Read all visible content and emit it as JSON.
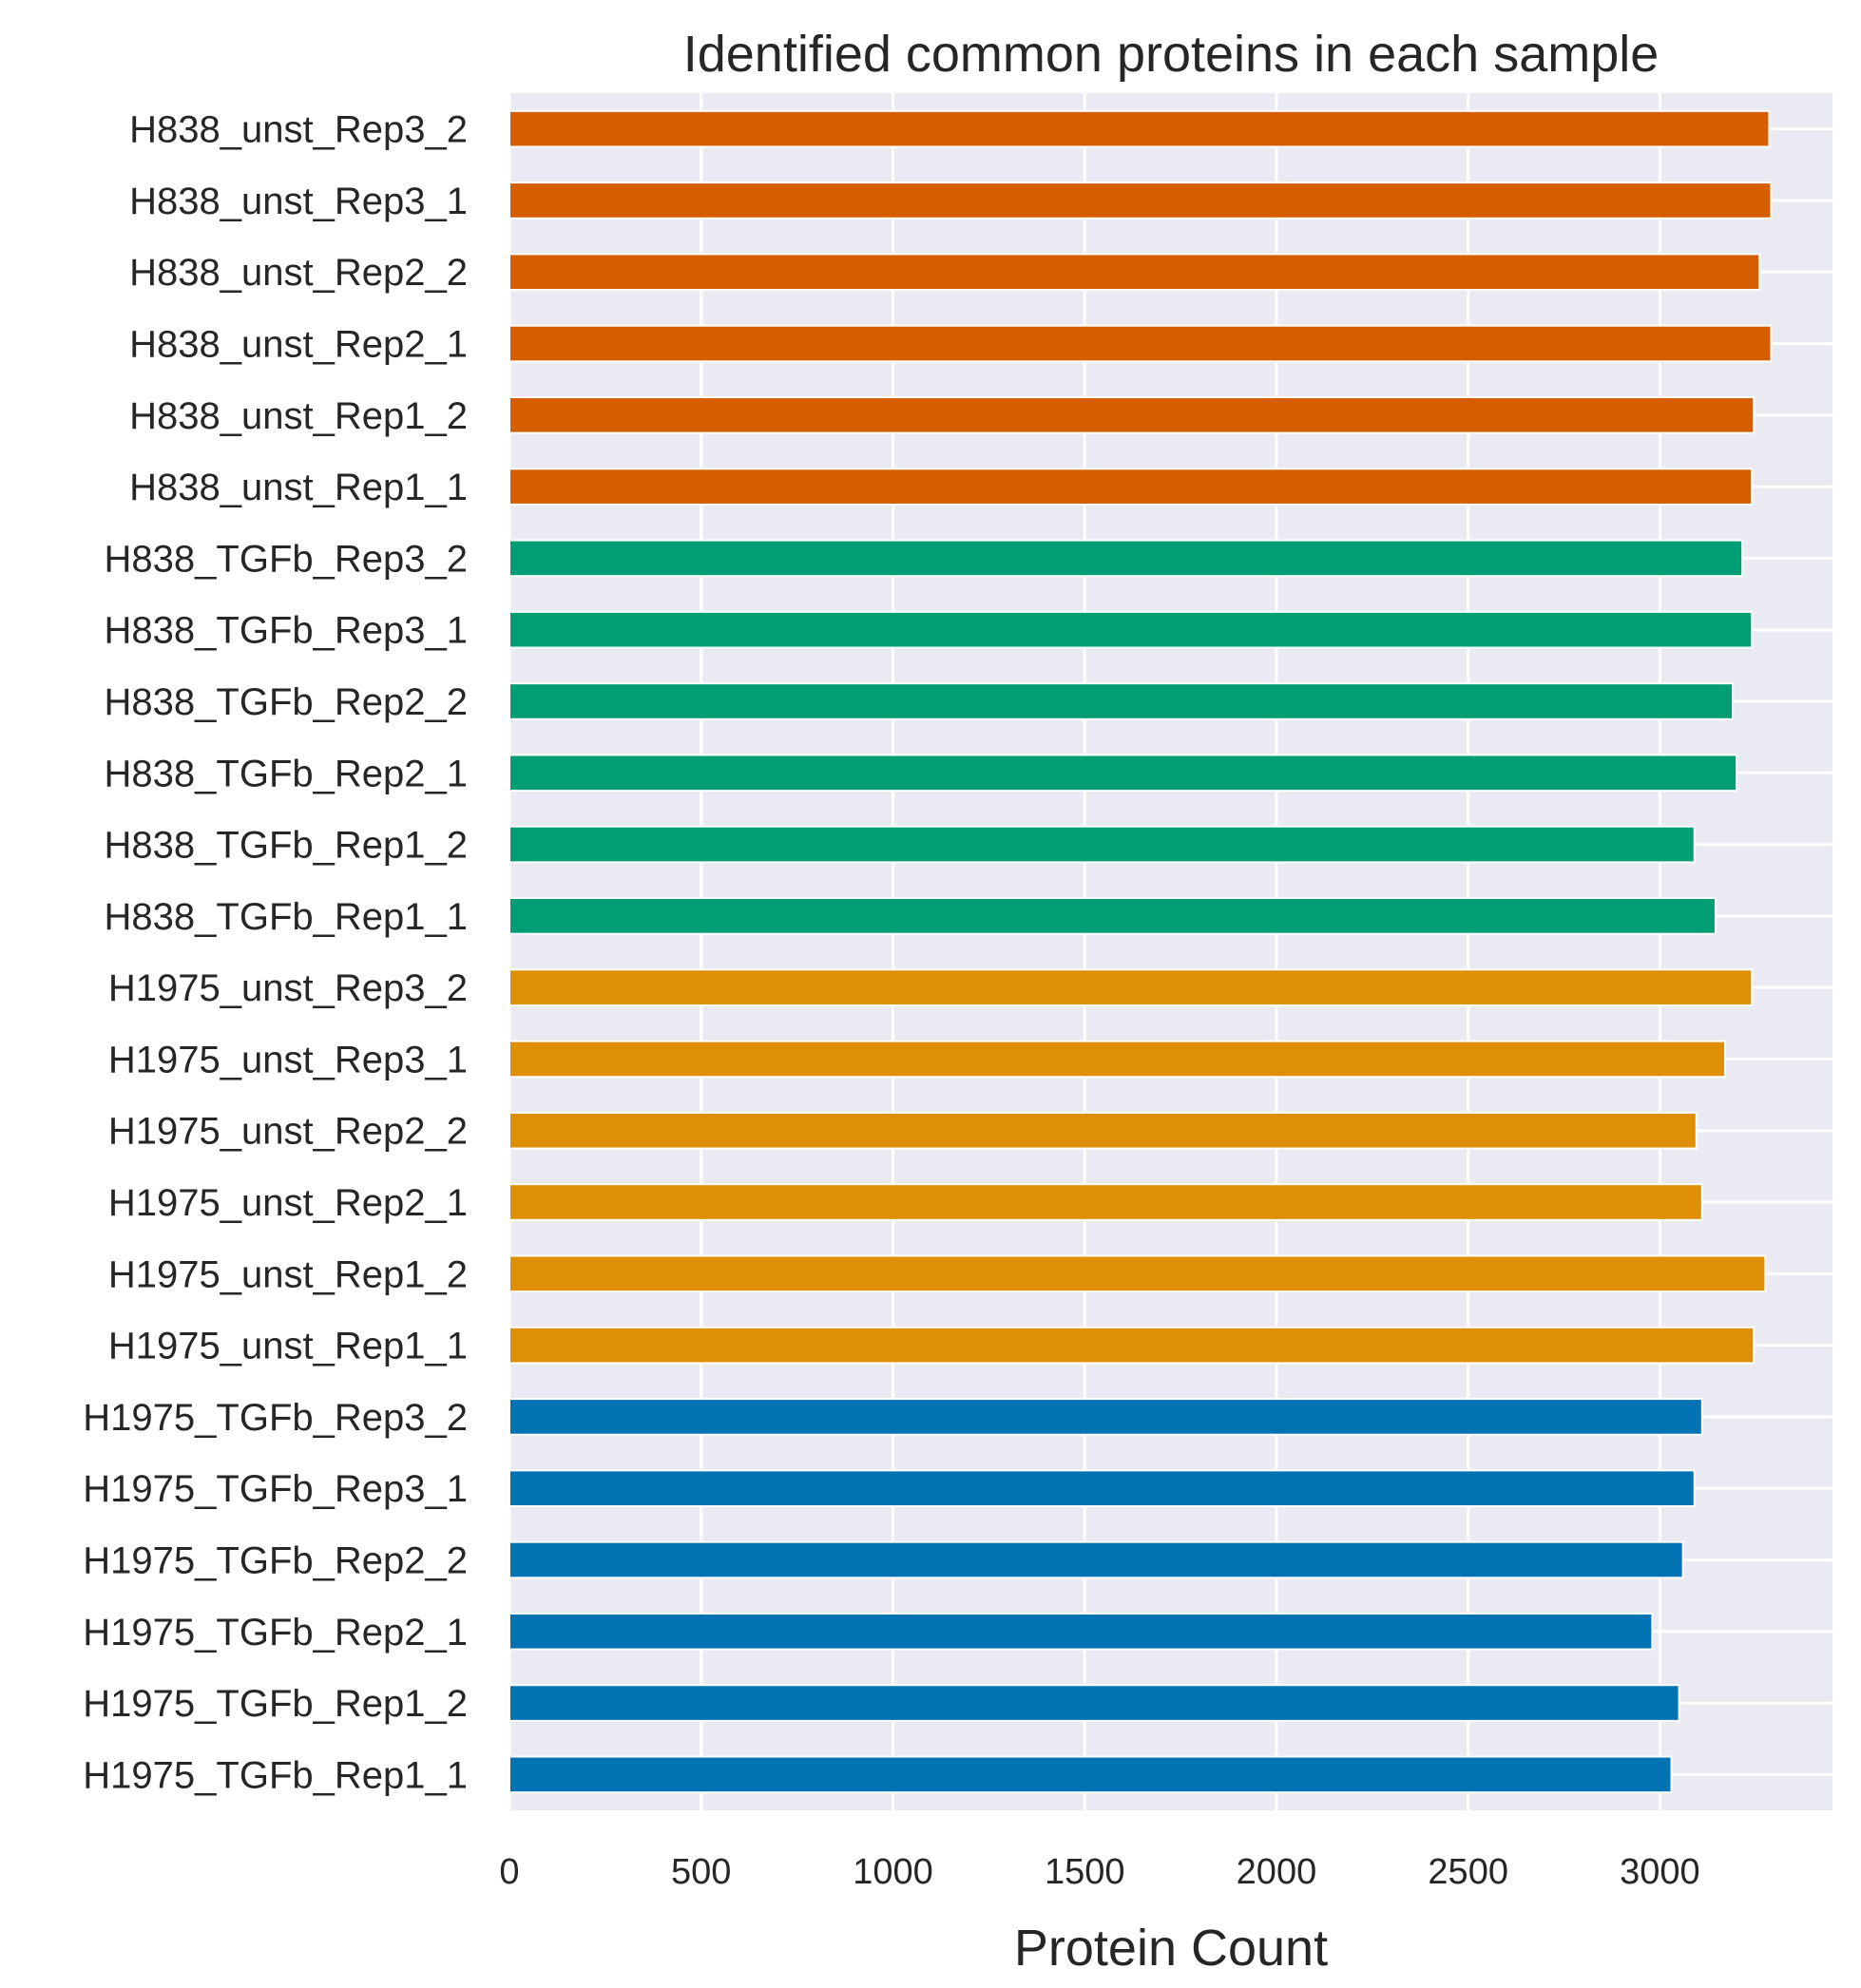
{
  "chart_data": {
    "type": "bar",
    "orientation": "horizontal",
    "title": "Identified common proteins in each sample",
    "xlabel": "Protein Count",
    "ylabel": "",
    "xlim": [
      0,
      3450
    ],
    "xticks": [
      0,
      500,
      1000,
      1500,
      2000,
      2500,
      3000
    ],
    "grid": true,
    "background": "#eaeaf2",
    "categories": [
      "H838_unst_Rep3_2",
      "H838_unst_Rep3_1",
      "H838_unst_Rep2_2",
      "H838_unst_Rep2_1",
      "H838_unst_Rep1_2",
      "H838_unst_Rep1_1",
      "H838_TGFb_Rep3_2",
      "H838_TGFb_Rep3_1",
      "H838_TGFb_Rep2_2",
      "H838_TGFb_Rep2_1",
      "H838_TGFb_Rep1_2",
      "H838_TGFb_Rep1_1",
      "H1975_unst_Rep3_2",
      "H1975_unst_Rep3_1",
      "H1975_unst_Rep2_2",
      "H1975_unst_Rep2_1",
      "H1975_unst_Rep1_2",
      "H1975_unst_Rep1_1",
      "H1975_TGFb_Rep3_2",
      "H1975_TGFb_Rep3_1",
      "H1975_TGFb_Rep2_2",
      "H1975_TGFb_Rep2_1",
      "H1975_TGFb_Rep1_2",
      "H1975_TGFb_Rep1_1"
    ],
    "values": [
      3285,
      3290,
      3260,
      3290,
      3245,
      3240,
      3215,
      3240,
      3190,
      3200,
      3090,
      3145,
      3240,
      3170,
      3095,
      3110,
      3275,
      3245,
      3110,
      3090,
      3060,
      2980,
      3050,
      3030
    ],
    "colors": [
      "#d55e00",
      "#d55e00",
      "#d55e00",
      "#d55e00",
      "#d55e00",
      "#d55e00",
      "#029e73",
      "#029e73",
      "#029e73",
      "#029e73",
      "#029e73",
      "#029e73",
      "#de8f05",
      "#de8f05",
      "#de8f05",
      "#de8f05",
      "#de8f05",
      "#de8f05",
      "#0173b2",
      "#0173b2",
      "#0173b2",
      "#0173b2",
      "#0173b2",
      "#0173b2"
    ]
  }
}
